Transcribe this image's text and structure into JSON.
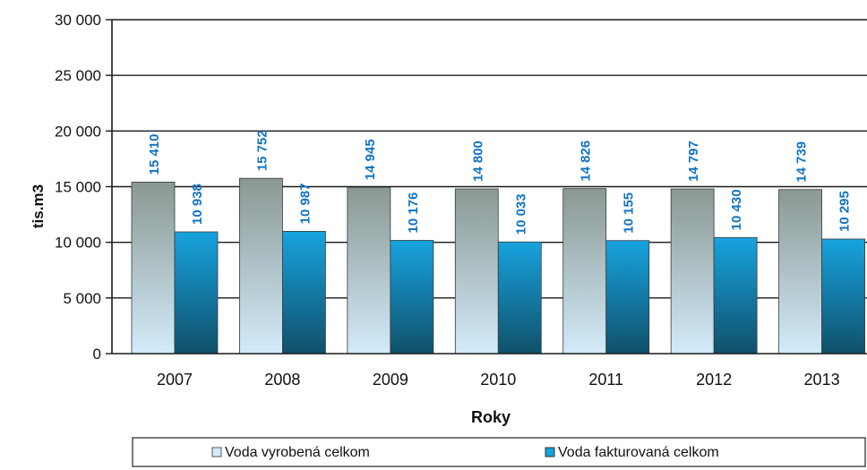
{
  "chart_data": {
    "type": "bar",
    "categories": [
      "2007",
      "2008",
      "2009",
      "2010",
      "2011",
      "2012",
      "2013"
    ],
    "series": [
      {
        "name": "Voda vyrobená celkom",
        "values": [
          15410,
          15752,
          14945,
          14800,
          14826,
          14797,
          14739
        ],
        "labels": [
          "15 410",
          "15 752",
          "14 945",
          "14 800",
          "14 826",
          "14 797",
          "14 739"
        ],
        "colors": [
          "#8a9893",
          "#d3ebfa"
        ]
      },
      {
        "name": "Voda fakturovaná celkom",
        "values": [
          10938,
          10987,
          10176,
          10033,
          10155,
          10430,
          10295
        ],
        "labels": [
          "10 938",
          "10 987",
          "10 176",
          "10 033",
          "10 155",
          "10 430",
          "10 295"
        ],
        "colors": [
          "#17a3de",
          "#10506a"
        ]
      }
    ],
    "xlabel": "Roky",
    "ylabel": "tis.m3",
    "ylim": [
      0,
      30000
    ],
    "yticks": [
      0,
      5000,
      10000,
      15000,
      20000,
      25000,
      30000
    ],
    "ytick_labels": [
      "0",
      "5 000",
      "10 000",
      "15 000",
      "20 000",
      "25 000",
      "30 000"
    ],
    "grid": true,
    "legend_position": "bottom",
    "label_color": "#1173c4"
  }
}
